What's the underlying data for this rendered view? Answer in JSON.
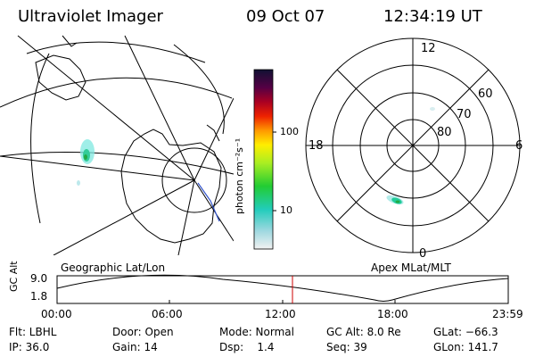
{
  "header": {
    "title": "Ultraviolet Imager",
    "date": "09 Oct 07",
    "time": "12:34:19 UT"
  },
  "colorbar": {
    "unit_label": "photon cm⁻²s⁻¹",
    "ticks": [
      "100",
      "10"
    ]
  },
  "polar_plot": {
    "mlt_labels": {
      "top": "12",
      "left": "18",
      "right": "6",
      "bottom": "0"
    },
    "lat_labels": [
      "60",
      "70",
      "80"
    ]
  },
  "map_captions": {
    "left": "Geographic Lat/Lon",
    "right": "Apex MLat/MLT"
  },
  "altitude_plot": {
    "ylabel": "GC Alt",
    "y_ticks": [
      "9.0",
      "1.8"
    ],
    "x_ticks": [
      "00:00",
      "06:00",
      "12:00",
      "18:00",
      "23:59"
    ],
    "current_time_marker": "12:34",
    "colors": {
      "marker": "#cc0000"
    }
  },
  "info": {
    "row1": {
      "filter": "Flt: LBHL",
      "door": "Door: Open",
      "mode": "Mode: Normal",
      "gc_alt": "GC Alt: 8.0 Re",
      "glat": "GLat: −66.3"
    },
    "row2": {
      "ip": "IP: 36.0",
      "gain": "Gain: 14",
      "dsp": "Dsp:    1.4",
      "seq": "Seq: 39",
      "glon": "GLon: 141.7"
    }
  }
}
